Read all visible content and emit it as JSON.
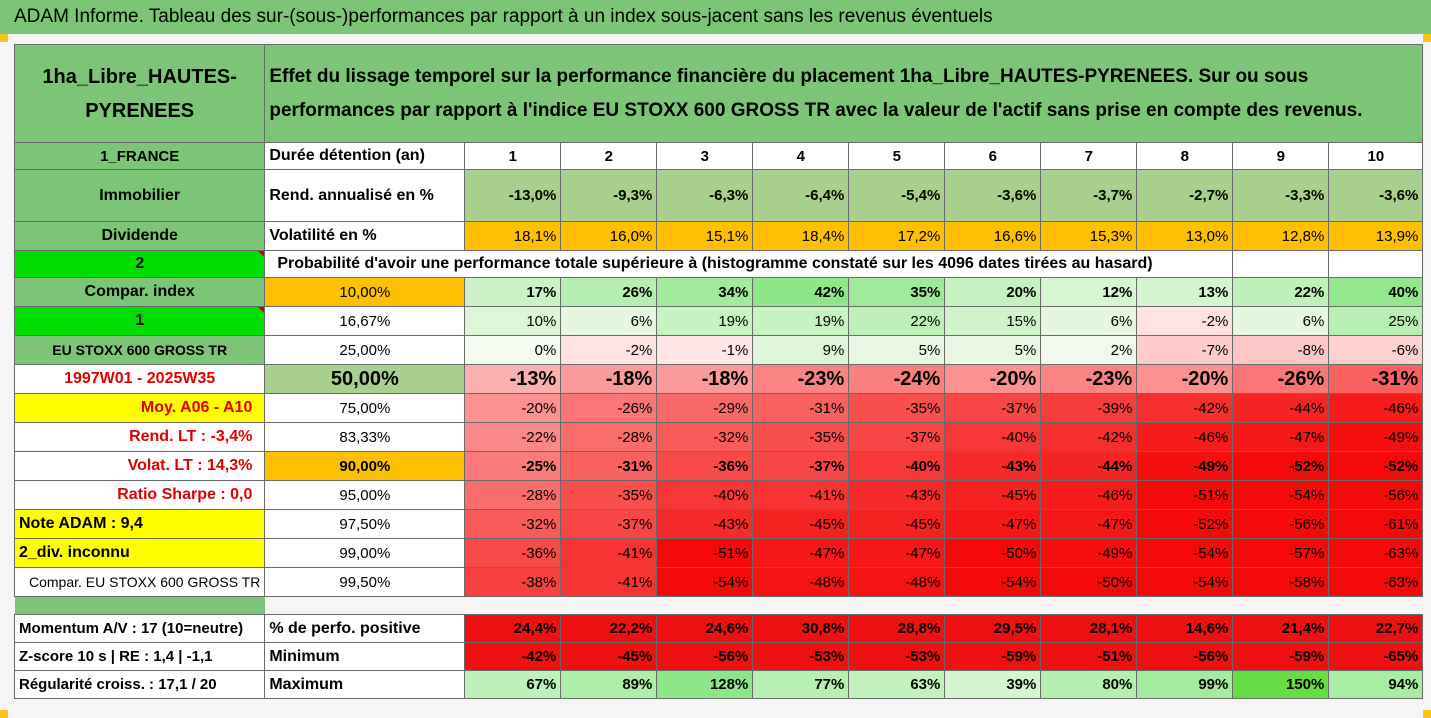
{
  "banner": "ADAM Informe. Tableau des sur-(sous-)performances par rapport à un index sous-jacent sans les revenus éventuels",
  "header": {
    "fund": "1ha_Libre_HAUTES-PYRENEES",
    "description": "Effet du lissage temporel sur la performance financière du placement 1ha_Libre_HAUTES-PYRENEES. Sur ou sous performances par rapport à l'indice EU STOXX 600 GROSS TR avec la valeur de l'actif sans prise en compte des revenus."
  },
  "left": {
    "country": "1_FRANCE",
    "type": "Immobilier",
    "dividende": "Dividende",
    "code2": "2",
    "compar": "Compar. index",
    "code1": "1",
    "index": "EU STOXX 600 GROSS TR",
    "period": "1997W01 - 2025W35",
    "moy": "Moy. A06 - A10",
    "rend": "Rend. LT :   -3,4%",
    "volat": "Volat. LT :   14,3%",
    "sharpe": "Ratio Sharpe :   0,0",
    "note": "Note ADAM : 9,4",
    "div": "2_div. inconnu",
    "compar2": "Compar. EU STOXX 600 GROSS TR",
    "momentum": "Momentum A/V : 17 (10=neutre)",
    "zscore": "Z-score 10 s  |  RE : 1,4  |  -1,1",
    "regul": "Régularité croiss. : 17,1 / 20"
  },
  "rows": {
    "duree": {
      "label": "Durée détention (an)",
      "years": [
        "1",
        "2",
        "3",
        "4",
        "5",
        "6",
        "7",
        "8",
        "9",
        "10"
      ]
    },
    "rend": {
      "label": "Rend. annualisé en %",
      "values": [
        "-13,0%",
        "-9,3%",
        "-6,3%",
        "-6,4%",
        "-5,4%",
        "-3,6%",
        "-3,7%",
        "-2,7%",
        "-3,3%",
        "-3,6%"
      ]
    },
    "vol": {
      "label": "Volatilité en %",
      "values": [
        "18,1%",
        "16,0%",
        "15,1%",
        "18,4%",
        "17,2%",
        "16,6%",
        "15,3%",
        "13,0%",
        "12,8%",
        "13,9%"
      ]
    },
    "proba_title": "Probabilité d'avoir une performance totale supérieure à (histogramme constaté sur les 4096 dates tirées au hasard)",
    "quantiles": [
      {
        "p": "10,00%",
        "values": [
          "17%",
          "26%",
          "34%",
          "42%",
          "35%",
          "20%",
          "12%",
          "13%",
          "22%",
          "40%"
        ]
      },
      {
        "p": "16,67%",
        "values": [
          "10%",
          "6%",
          "19%",
          "19%",
          "22%",
          "15%",
          "6%",
          "-2%",
          "6%",
          "25%"
        ]
      },
      {
        "p": "25,00%",
        "values": [
          "0%",
          "-2%",
          "-1%",
          "9%",
          "5%",
          "5%",
          "2%",
          "-7%",
          "-8%",
          "-6%"
        ]
      },
      {
        "p": "50,00%",
        "values": [
          "-13%",
          "-18%",
          "-18%",
          "-23%",
          "-24%",
          "-20%",
          "-23%",
          "-20%",
          "-26%",
          "-31%"
        ]
      },
      {
        "p": "75,00%",
        "values": [
          "-20%",
          "-26%",
          "-29%",
          "-31%",
          "-35%",
          "-37%",
          "-39%",
          "-42%",
          "-44%",
          "-46%"
        ]
      },
      {
        "p": "83,33%",
        "values": [
          "-22%",
          "-28%",
          "-32%",
          "-35%",
          "-37%",
          "-40%",
          "-42%",
          "-46%",
          "-47%",
          "-49%"
        ]
      },
      {
        "p": "90,00%",
        "values": [
          "-25%",
          "-31%",
          "-36%",
          "-37%",
          "-40%",
          "-43%",
          "-44%",
          "-49%",
          "-52%",
          "-52%"
        ]
      },
      {
        "p": "95,00%",
        "values": [
          "-28%",
          "-35%",
          "-40%",
          "-41%",
          "-43%",
          "-45%",
          "-46%",
          "-51%",
          "-54%",
          "-56%"
        ]
      },
      {
        "p": "97,50%",
        "values": [
          "-32%",
          "-37%",
          "-43%",
          "-45%",
          "-45%",
          "-47%",
          "-47%",
          "-52%",
          "-56%",
          "-61%"
        ]
      },
      {
        "p": "99,00%",
        "values": [
          "-36%",
          "-41%",
          "-51%",
          "-47%",
          "-47%",
          "-50%",
          "-49%",
          "-54%",
          "-57%",
          "-63%"
        ]
      },
      {
        "p": "99,50%",
        "values": [
          "-38%",
          "-41%",
          "-54%",
          "-48%",
          "-48%",
          "-54%",
          "-50%",
          "-54%",
          "-58%",
          "-63%"
        ]
      }
    ],
    "positive": {
      "label": "% de perfo. positive",
      "values": [
        "24,4%",
        "22,2%",
        "24,6%",
        "30,8%",
        "28,8%",
        "29,5%",
        "28,1%",
        "14,6%",
        "21,4%",
        "22,7%"
      ]
    },
    "minimum": {
      "label": "Minimum",
      "values": [
        "-42%",
        "-45%",
        "-56%",
        "-53%",
        "-53%",
        "-59%",
        "-51%",
        "-56%",
        "-59%",
        "-65%"
      ]
    },
    "maximum": {
      "label": "Maximum",
      "values": [
        "67%",
        "89%",
        "128%",
        "77%",
        "63%",
        "39%",
        "80%",
        "99%",
        "150%",
        "94%"
      ]
    }
  },
  "colors": {
    "header_green": "#7cc576",
    "light_green": "#a9d08e",
    "orange": "#ffc000",
    "yellow": "#ffff00",
    "bright_green": "#00dd00",
    "red_text": "#e00000"
  }
}
